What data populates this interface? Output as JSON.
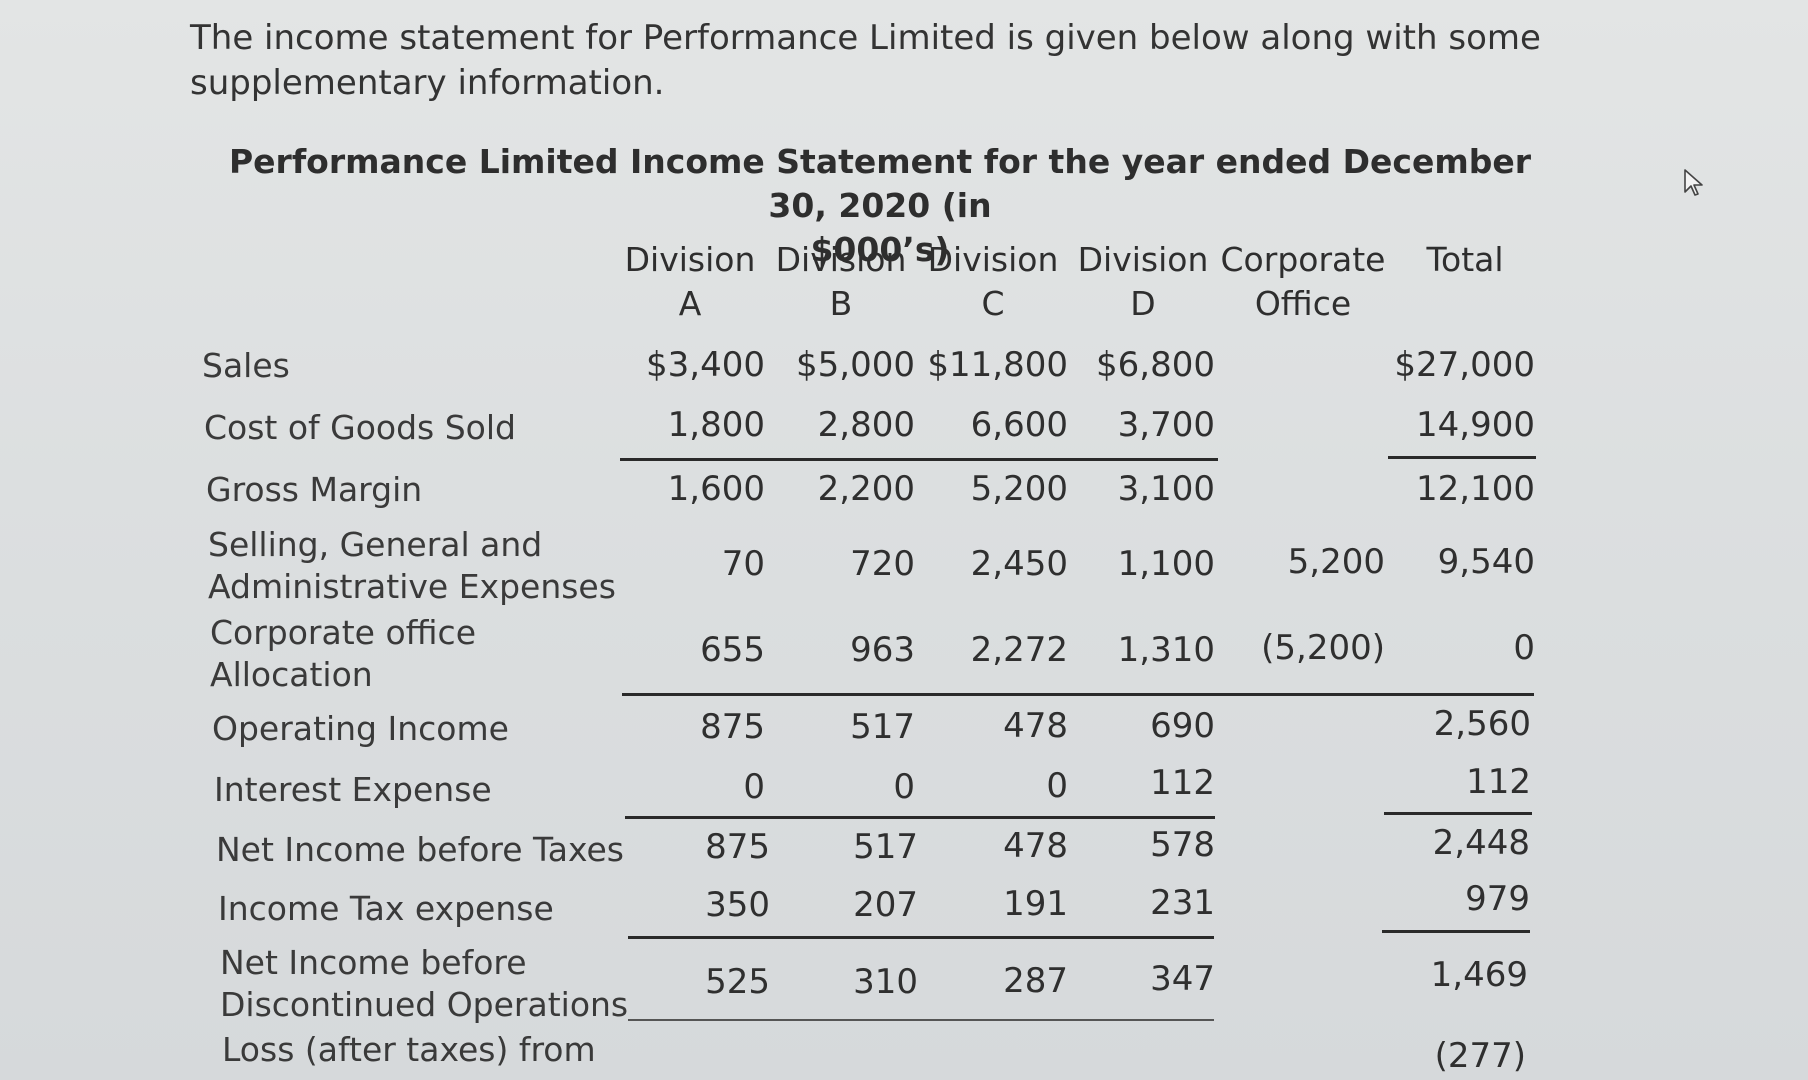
{
  "intro": "The income statement for Performance Limited is given below along with some supplementary information.",
  "title_line1": "Performance Limited Income Statement for the year ended December 30, 2020 (in",
  "title_line2": "$000’s)",
  "columns": [
    {
      "line1": "Division",
      "line2": "A"
    },
    {
      "line1": "Division",
      "line2": "B"
    },
    {
      "line1": "Division",
      "line2": "C"
    },
    {
      "line1": "Division",
      "line2": "D"
    },
    {
      "line1": "Corporate",
      "line2": "Office"
    },
    {
      "line1": "Total",
      "line2": ""
    }
  ],
  "rows": [
    {
      "label": [
        "Sales"
      ],
      "values": [
        "$3,400",
        "$5,000",
        "$11,800",
        "$6,800",
        "",
        "$27,000"
      ]
    },
    {
      "label": [
        "Cost of Goods Sold"
      ],
      "values": [
        "1,800",
        "2,800",
        "6,600",
        "3,700",
        "",
        "14,900"
      ]
    },
    {
      "label": [
        "Gross Margin"
      ],
      "values": [
        "1,600",
        "2,200",
        "5,200",
        "3,100",
        "",
        "12,100"
      ]
    },
    {
      "label": [
        "Selling, General and",
        "Administrative Expenses"
      ],
      "values": [
        "70",
        "720",
        "2,450",
        "1,100",
        "5,200",
        "9,540"
      ]
    },
    {
      "label": [
        "Corporate office",
        "Allocation"
      ],
      "values": [
        "655",
        "963",
        "2,272",
        "1,310",
        "(5,200)",
        "0"
      ]
    },
    {
      "label": [
        "Operating Income"
      ],
      "values": [
        "875",
        "517",
        "478",
        "690",
        "",
        "2,560"
      ]
    },
    {
      "label": [
        "Interest Expense"
      ],
      "values": [
        "0",
        "0",
        "0",
        "112",
        "",
        "112"
      ]
    },
    {
      "label": [
        "Net Income before Taxes"
      ],
      "values": [
        "875",
        "517",
        "478",
        "578",
        "",
        "2,448"
      ]
    },
    {
      "label": [
        "Income Tax expense"
      ],
      "values": [
        "350",
        "207",
        "191",
        "231",
        "",
        "979"
      ]
    },
    {
      "label": [
        "Net Income before",
        "Discontinued Operations"
      ],
      "values": [
        "525",
        "310",
        "287",
        "347",
        "",
        "1,469"
      ]
    },
    {
      "label": [
        "Loss (after taxes) from"
      ],
      "values": [
        "",
        "",
        "",
        "",
        "",
        "(277)"
      ]
    }
  ]
}
